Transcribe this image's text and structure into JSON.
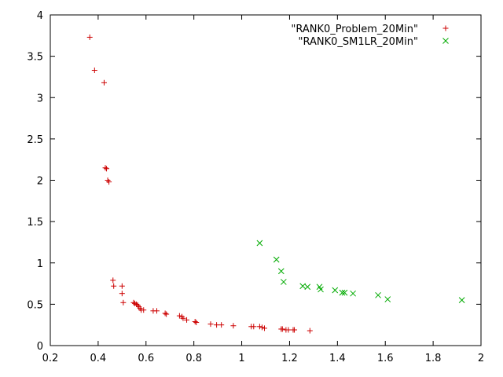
{
  "chart_data": {
    "type": "scatter",
    "title": "",
    "xlabel": "",
    "ylabel": "",
    "xlim": [
      0.2,
      2.0
    ],
    "ylim": [
      0,
      4
    ],
    "xticks": [
      "0.2",
      "0.4",
      "0.6",
      "0.8",
      "1",
      "1.2",
      "1.4",
      "1.6",
      "1.8",
      "2"
    ],
    "yticks": [
      "0",
      "0.5",
      "1",
      "1.5",
      "2",
      "2.5",
      "3",
      "3.5",
      "4"
    ],
    "grid": false,
    "legend": "top-right",
    "series": [
      {
        "name": "\"RANK0_Problem_20Min\"",
        "marker": "plus",
        "color": "#cc0000",
        "points": [
          [
            0.365,
            3.73
          ],
          [
            0.385,
            3.33
          ],
          [
            0.425,
            3.18
          ],
          [
            0.43,
            2.15
          ],
          [
            0.435,
            2.14
          ],
          [
            0.44,
            2.0
          ],
          [
            0.445,
            1.98
          ],
          [
            0.462,
            0.79
          ],
          [
            0.465,
            0.72
          ],
          [
            0.5,
            0.72
          ],
          [
            0.5,
            0.63
          ],
          [
            0.505,
            0.52
          ],
          [
            0.548,
            0.52
          ],
          [
            0.553,
            0.51
          ],
          [
            0.56,
            0.5
          ],
          [
            0.565,
            0.49
          ],
          [
            0.57,
            0.47
          ],
          [
            0.575,
            0.45
          ],
          [
            0.58,
            0.43
          ],
          [
            0.59,
            0.43
          ],
          [
            0.63,
            0.42
          ],
          [
            0.645,
            0.42
          ],
          [
            0.68,
            0.39
          ],
          [
            0.685,
            0.38
          ],
          [
            0.74,
            0.36
          ],
          [
            0.75,
            0.35
          ],
          [
            0.755,
            0.33
          ],
          [
            0.77,
            0.31
          ],
          [
            0.805,
            0.29
          ],
          [
            0.81,
            0.28
          ],
          [
            0.87,
            0.26
          ],
          [
            0.895,
            0.25
          ],
          [
            0.915,
            0.25
          ],
          [
            0.965,
            0.24
          ],
          [
            1.04,
            0.23
          ],
          [
            1.05,
            0.23
          ],
          [
            1.075,
            0.23
          ],
          [
            1.085,
            0.22
          ],
          [
            1.095,
            0.21
          ],
          [
            1.165,
            0.2
          ],
          [
            1.17,
            0.2
          ],
          [
            1.185,
            0.19
          ],
          [
            1.195,
            0.19
          ],
          [
            1.215,
            0.19
          ],
          [
            1.22,
            0.19
          ],
          [
            1.285,
            0.18
          ]
        ]
      },
      {
        "name": "\"RANK0_SM1LR_20Min\"",
        "marker": "cross",
        "color": "#00aa00",
        "points": [
          [
            1.075,
            1.24
          ],
          [
            1.145,
            1.04
          ],
          [
            1.165,
            0.9
          ],
          [
            1.175,
            0.77
          ],
          [
            1.255,
            0.72
          ],
          [
            1.275,
            0.71
          ],
          [
            1.325,
            0.71
          ],
          [
            1.33,
            0.68
          ],
          [
            1.39,
            0.67
          ],
          [
            1.42,
            0.64
          ],
          [
            1.43,
            0.64
          ],
          [
            1.465,
            0.63
          ],
          [
            1.57,
            0.61
          ],
          [
            1.61,
            0.56
          ],
          [
            1.92,
            0.55
          ]
        ]
      }
    ]
  }
}
